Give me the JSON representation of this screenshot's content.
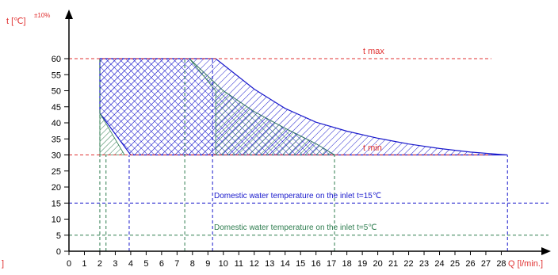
{
  "chart_data": {
    "type": "area",
    "title": "",
    "y_axis": {
      "label": "t [℃]",
      "tolerance": "±10%",
      "min": 0,
      "max": 60,
      "ticks": [
        0,
        5,
        10,
        15,
        20,
        25,
        30,
        35,
        40,
        45,
        50,
        55,
        60
      ]
    },
    "x_axis": {
      "label": "Q [l/min.]",
      "min": 0,
      "max": 28,
      "ticks": [
        0,
        1,
        2,
        3,
        4,
        5,
        6,
        7,
        8,
        9,
        10,
        11,
        12,
        13,
        14,
        15,
        16,
        17,
        18,
        19,
        20,
        21,
        22,
        23,
        24,
        25,
        26,
        27,
        28
      ]
    },
    "left_clipped_label": "]",
    "reference_lines": [
      {
        "name": "t max",
        "y": 60,
        "color": "#e03030"
      },
      {
        "name": "t min",
        "y": 30,
        "color": "#e03030"
      },
      {
        "name": "Domestic water temperature on the inlet t=15℃",
        "y": 15,
        "color": "#1a1acc"
      },
      {
        "name": "Domestic water temperature on the inlet t=5℃",
        "y": 5,
        "color": "#2e7d4f"
      }
    ],
    "regions": [
      {
        "id": "blue",
        "color": "#1a1acc",
        "pattern": "hatch",
        "points": [
          [
            2,
            60
          ],
          [
            9.5,
            60
          ],
          [
            12,
            50.5
          ],
          [
            14,
            44.5
          ],
          [
            16,
            40.2
          ],
          [
            18,
            37.4
          ],
          [
            20,
            35.2
          ],
          [
            22,
            33.4
          ],
          [
            24,
            32
          ],
          [
            26,
            30.9
          ],
          [
            28.4,
            30
          ],
          [
            4,
            30
          ],
          [
            2,
            43
          ]
        ]
      },
      {
        "id": "blue-cross",
        "color": "#1a1acc",
        "pattern": "crosshatch",
        "points": [
          [
            2,
            60
          ],
          [
            7.8,
            60
          ],
          [
            10,
            50
          ],
          [
            12,
            43.5
          ],
          [
            14,
            38.3
          ],
          [
            16,
            33.5
          ],
          [
            17.2,
            30
          ],
          [
            4,
            30
          ],
          [
            2,
            43
          ]
        ]
      },
      {
        "id": "green",
        "color": "#2e7d4f",
        "pattern": "hatch",
        "points": [
          [
            7.8,
            60
          ],
          [
            10,
            50
          ],
          [
            12,
            43.5
          ],
          [
            14,
            38.3
          ],
          [
            16,
            33.5
          ],
          [
            17.2,
            30
          ],
          [
            9.5,
            30
          ],
          [
            9.5,
            50
          ]
        ]
      },
      {
        "id": "green-small",
        "color": "#2e7d4f",
        "pattern": "hatch",
        "points": [
          [
            2,
            43
          ],
          [
            2,
            30
          ],
          [
            3.6,
            30
          ]
        ]
      }
    ],
    "vertical_guides": [
      {
        "x": 2,
        "from": 0,
        "to": 60,
        "color": "#2e7d4f"
      },
      {
        "x": 2.4,
        "from": 0,
        "to": 30,
        "color": "#2e7d4f"
      },
      {
        "x": 3.9,
        "from": 0,
        "to": 30,
        "color": "#1a1acc"
      },
      {
        "x": 7.5,
        "from": 0,
        "to": 60,
        "color": "#2e7d4f"
      },
      {
        "x": 9.3,
        "from": 0,
        "to": 60,
        "color": "#1a1acc"
      },
      {
        "x": 17.2,
        "from": 0,
        "to": 30,
        "color": "#2e7d4f"
      },
      {
        "x": 28.4,
        "from": 0,
        "to": 30,
        "color": "#1a1acc"
      }
    ]
  }
}
